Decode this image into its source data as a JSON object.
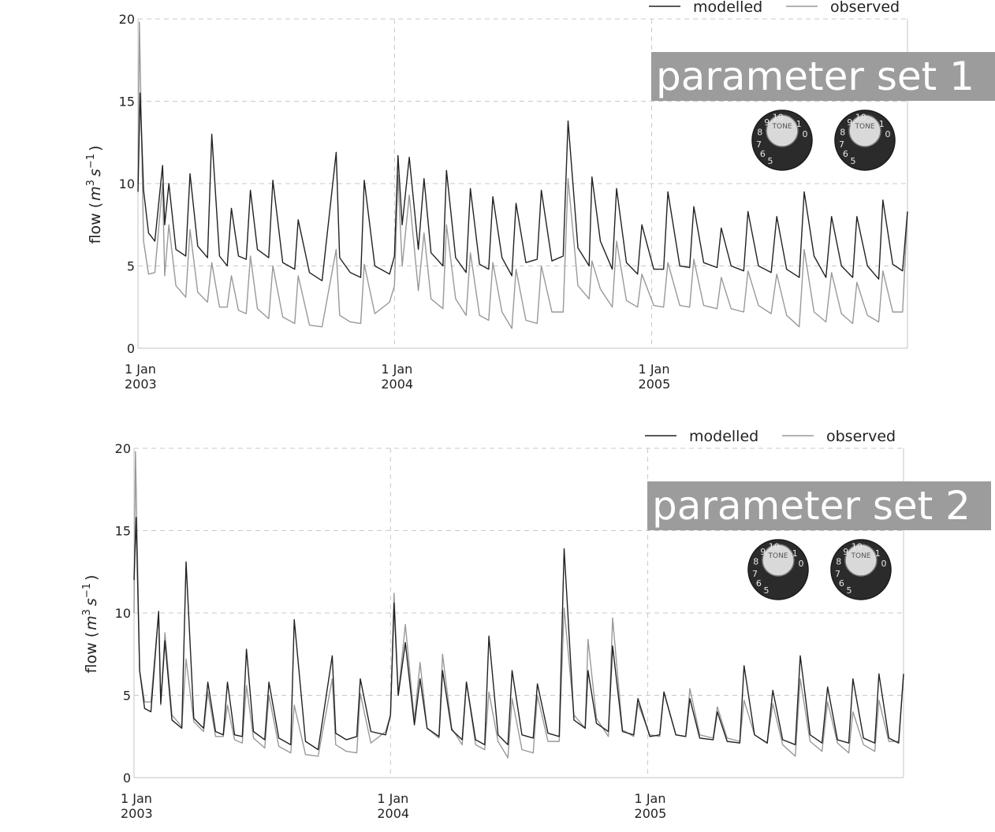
{
  "chart_data": [
    {
      "type": "line",
      "banner": "parameter set 1",
      "ylabel_main": "flow (",
      "ylabel_unit": "m",
      "ylabel_exp1": "3",
      "ylabel_unit2": "s",
      "ylabel_exp2": "−1",
      "ylabel_close": ")",
      "ylim": [
        0,
        20
      ],
      "yticks": [
        "0",
        "5",
        "10",
        "15",
        "20"
      ],
      "xlim": [
        "2003-01-01",
        "2005-12-31"
      ],
      "xticks": [
        {
          "date": "2003-01-01",
          "line1": "1 Jan",
          "line2": "2003"
        },
        {
          "date": "2004-01-01",
          "line1": "1 Jan",
          "line2": "2004"
        },
        {
          "date": "2005-01-01",
          "line1": "1 Jan",
          "line2": "2005"
        }
      ],
      "legend": {
        "position": "top-right",
        "entries": [
          "modelled",
          "observed"
        ]
      },
      "knob_label": "TONE",
      "knob_numbers": [
        "5",
        "6",
        "7",
        "8",
        "9",
        "10",
        "1",
        "0"
      ],
      "grid": true,
      "series": [
        {
          "name": "modelled",
          "color": "#222222",
          "x": [
            "2003-01-01",
            "2003-01-04",
            "2003-01-09",
            "2003-01-16",
            "2003-01-25",
            "2003-02-05",
            "2003-02-08",
            "2003-02-14",
            "2003-02-24",
            "2003-03-10",
            "2003-03-16",
            "2003-03-27",
            "2003-04-10",
            "2003-04-16",
            "2003-04-27",
            "2003-05-08",
            "2003-05-14",
            "2003-05-24",
            "2003-06-04",
            "2003-06-10",
            "2003-06-20",
            "2003-07-06",
            "2003-07-12",
            "2003-07-26",
            "2003-08-12",
            "2003-08-17",
            "2003-09-02",
            "2003-09-20",
            "2003-10-10",
            "2003-10-15",
            "2003-10-30",
            "2003-11-14",
            "2003-11-19",
            "2003-12-04",
            "2003-12-25",
            "2004-01-01",
            "2004-01-06",
            "2004-01-12",
            "2004-01-22",
            "2004-02-04",
            "2004-02-12",
            "2004-02-22",
            "2004-03-10",
            "2004-03-15",
            "2004-03-28",
            "2004-04-12",
            "2004-04-18",
            "2004-05-01",
            "2004-05-14",
            "2004-05-20",
            "2004-06-02",
            "2004-06-16",
            "2004-06-22",
            "2004-07-06",
            "2004-07-22",
            "2004-07-28",
            "2004-08-12",
            "2004-08-28",
            "2004-09-04",
            "2004-09-18",
            "2004-10-04",
            "2004-10-08",
            "2004-10-20",
            "2004-11-06",
            "2004-11-12",
            "2004-11-26",
            "2004-12-12",
            "2004-12-18",
            "2005-01-04",
            "2005-01-18",
            "2005-01-24",
            "2005-02-10",
            "2005-02-24",
            "2005-03-02",
            "2005-03-16",
            "2005-04-04",
            "2005-04-10",
            "2005-04-24",
            "2005-05-12",
            "2005-05-18",
            "2005-06-02",
            "2005-06-20",
            "2005-06-28",
            "2005-07-12",
            "2005-07-30",
            "2005-08-06",
            "2005-08-20",
            "2005-09-06",
            "2005-09-14",
            "2005-09-28",
            "2005-10-14",
            "2005-10-20",
            "2005-11-04",
            "2005-11-20",
            "2005-11-26",
            "2005-12-10",
            "2005-12-24",
            "2005-12-31"
          ],
          "y": [
            9.5,
            15.5,
            9.6,
            7.0,
            6.5,
            11.1,
            7.5,
            10.0,
            6.0,
            5.6,
            10.6,
            6.2,
            5.5,
            13.0,
            5.6,
            5.0,
            8.5,
            5.6,
            5.4,
            9.6,
            6.0,
            5.5,
            10.2,
            5.2,
            4.8,
            7.8,
            4.6,
            4.1,
            11.9,
            5.5,
            4.6,
            4.3,
            10.2,
            5.0,
            4.5,
            5.6,
            11.7,
            7.5,
            11.6,
            6.0,
            10.3,
            5.8,
            5.0,
            10.8,
            5.5,
            4.6,
            9.7,
            5.1,
            4.8,
            9.2,
            5.5,
            4.4,
            8.8,
            5.2,
            5.4,
            9.6,
            5.3,
            5.6,
            13.8,
            6.1,
            5.0,
            10.4,
            6.5,
            4.8,
            9.7,
            5.2,
            4.5,
            7.5,
            4.8,
            4.8,
            9.5,
            5.0,
            4.9,
            8.6,
            5.2,
            4.9,
            7.3,
            5.0,
            4.7,
            8.3,
            5.0,
            4.6,
            8.0,
            4.8,
            4.3,
            9.5,
            5.6,
            4.3,
            8.0,
            5.0,
            4.3,
            8.0,
            5.0,
            4.2,
            9.0,
            5.1,
            4.7,
            8.3
          ]
        },
        {
          "name": "observed",
          "color": "#999999",
          "x": [
            "2003-01-01",
            "2003-01-03",
            "2003-01-09",
            "2003-01-16",
            "2003-01-25",
            "2003-02-05",
            "2003-02-08",
            "2003-02-14",
            "2003-02-24",
            "2003-03-10",
            "2003-03-16",
            "2003-03-27",
            "2003-04-10",
            "2003-04-16",
            "2003-04-27",
            "2003-05-08",
            "2003-05-14",
            "2003-05-24",
            "2003-06-04",
            "2003-06-10",
            "2003-06-20",
            "2003-07-06",
            "2003-07-12",
            "2003-07-26",
            "2003-08-12",
            "2003-08-17",
            "2003-09-02",
            "2003-09-20",
            "2003-10-10",
            "2003-10-15",
            "2003-10-30",
            "2003-11-14",
            "2003-11-19",
            "2003-12-04",
            "2003-12-25",
            "2004-01-01",
            "2004-01-06",
            "2004-01-12",
            "2004-01-22",
            "2004-02-04",
            "2004-02-12",
            "2004-02-22",
            "2004-03-10",
            "2004-03-15",
            "2004-03-28",
            "2004-04-12",
            "2004-04-18",
            "2004-05-01",
            "2004-05-14",
            "2004-05-20",
            "2004-06-02",
            "2004-06-16",
            "2004-06-22",
            "2004-07-06",
            "2004-07-22",
            "2004-07-28",
            "2004-08-12",
            "2004-08-28",
            "2004-09-04",
            "2004-09-18",
            "2004-10-04",
            "2004-10-08",
            "2004-10-20",
            "2004-11-06",
            "2004-11-12",
            "2004-11-26",
            "2004-12-12",
            "2004-12-18",
            "2005-01-04",
            "2005-01-18",
            "2005-01-24",
            "2005-02-10",
            "2005-02-24",
            "2005-03-02",
            "2005-03-16",
            "2005-04-04",
            "2005-04-10",
            "2005-04-24",
            "2005-05-12",
            "2005-05-18",
            "2005-06-02",
            "2005-06-20",
            "2005-06-28",
            "2005-07-12",
            "2005-07-30",
            "2005-08-06",
            "2005-08-20",
            "2005-09-06",
            "2005-09-14",
            "2005-09-28",
            "2005-10-14",
            "2005-10-20",
            "2005-11-04",
            "2005-11-20",
            "2005-11-26",
            "2005-12-10",
            "2005-12-24",
            "2005-12-31"
          ],
          "y": [
            10.0,
            19.8,
            6.5,
            4.5,
            4.6,
            10.0,
            4.4,
            7.5,
            3.8,
            3.1,
            7.2,
            3.4,
            2.8,
            5.2,
            2.5,
            2.5,
            4.4,
            2.3,
            2.1,
            5.6,
            2.4,
            1.8,
            5.0,
            1.9,
            1.5,
            4.4,
            1.4,
            1.3,
            6.0,
            2.0,
            1.6,
            1.5,
            5.1,
            2.1,
            2.8,
            3.8,
            10.5,
            5.0,
            9.3,
            3.5,
            7.0,
            3.0,
            2.4,
            7.5,
            3.0,
            2.0,
            5.8,
            2.0,
            1.7,
            5.2,
            2.2,
            1.2,
            4.8,
            1.7,
            1.5,
            5.0,
            2.2,
            2.2,
            10.3,
            3.8,
            3.0,
            5.3,
            3.6,
            2.5,
            6.5,
            2.9,
            2.5,
            4.5,
            2.6,
            2.5,
            5.2,
            2.6,
            2.5,
            5.4,
            2.6,
            2.4,
            4.3,
            2.4,
            2.2,
            4.7,
            2.6,
            2.1,
            4.5,
            2.0,
            1.3,
            6.0,
            2.2,
            1.6,
            4.6,
            2.1,
            1.5,
            4.0,
            2.0,
            1.6,
            4.7,
            2.2,
            2.2,
            8.3
          ]
        }
      ]
    },
    {
      "type": "line",
      "banner": "parameter set 2",
      "ylabel_main": "flow (",
      "ylabel_unit": "m",
      "ylabel_exp1": "3",
      "ylabel_unit2": "s",
      "ylabel_exp2": "−1",
      "ylabel_close": ")",
      "ylim": [
        0,
        20
      ],
      "yticks": [
        "0",
        "5",
        "10",
        "15",
        "20"
      ],
      "xlim": [
        "2003-01-01",
        "2005-12-31"
      ],
      "xticks": [
        {
          "date": "2003-01-01",
          "line1": "1 Jan",
          "line2": "2003"
        },
        {
          "date": "2004-01-01",
          "line1": "1 Jan",
          "line2": "2004"
        },
        {
          "date": "2005-01-01",
          "line1": "1 Jan",
          "line2": "2005"
        }
      ],
      "legend": {
        "position": "top-right",
        "entries": [
          "modelled",
          "observed"
        ]
      },
      "knob_label": "TONE",
      "knob_numbers": [
        "5",
        "6",
        "7",
        "8",
        "9",
        "10",
        "1",
        "0"
      ],
      "grid": true,
      "series": [
        {
          "name": "modelled",
          "color": "#222222",
          "x": [
            "2003-01-01",
            "2003-01-04",
            "2003-01-09",
            "2003-01-16",
            "2003-01-25",
            "2003-02-05",
            "2003-02-08",
            "2003-02-14",
            "2003-02-24",
            "2003-03-10",
            "2003-03-16",
            "2003-03-27",
            "2003-04-10",
            "2003-04-16",
            "2003-04-27",
            "2003-05-08",
            "2003-05-14",
            "2003-05-24",
            "2003-06-04",
            "2003-06-10",
            "2003-06-20",
            "2003-07-06",
            "2003-07-12",
            "2003-07-26",
            "2003-08-12",
            "2003-08-17",
            "2003-09-02",
            "2003-09-20",
            "2003-10-10",
            "2003-10-15",
            "2003-10-30",
            "2003-11-14",
            "2003-11-19",
            "2003-12-04",
            "2003-12-25",
            "2004-01-01",
            "2004-01-06",
            "2004-01-12",
            "2004-01-22",
            "2004-02-04",
            "2004-02-12",
            "2004-02-22",
            "2004-03-10",
            "2004-03-15",
            "2004-03-28",
            "2004-04-12",
            "2004-04-18",
            "2004-05-01",
            "2004-05-14",
            "2004-05-20",
            "2004-06-02",
            "2004-06-16",
            "2004-06-22",
            "2004-07-06",
            "2004-07-22",
            "2004-07-28",
            "2004-08-12",
            "2004-08-28",
            "2004-09-04",
            "2004-09-18",
            "2004-10-04",
            "2004-10-08",
            "2004-10-20",
            "2004-11-06",
            "2004-11-12",
            "2004-11-26",
            "2004-12-12",
            "2004-12-18",
            "2005-01-04",
            "2005-01-18",
            "2005-01-24",
            "2005-02-10",
            "2005-02-24",
            "2005-03-02",
            "2005-03-16",
            "2005-04-04",
            "2005-04-10",
            "2005-04-24",
            "2005-05-12",
            "2005-05-18",
            "2005-06-02",
            "2005-06-20",
            "2005-06-28",
            "2005-07-12",
            "2005-07-30",
            "2005-08-06",
            "2005-08-20",
            "2005-09-06",
            "2005-09-14",
            "2005-09-28",
            "2005-10-14",
            "2005-10-20",
            "2005-11-04",
            "2005-11-20",
            "2005-11-26",
            "2005-12-10",
            "2005-12-24",
            "2005-12-31"
          ],
          "y": [
            12.0,
            15.8,
            6.5,
            4.2,
            4.0,
            10.1,
            4.5,
            8.3,
            3.5,
            3.0,
            13.1,
            3.6,
            3.0,
            5.8,
            2.8,
            2.6,
            5.8,
            2.6,
            2.5,
            7.8,
            2.8,
            2.3,
            5.8,
            2.4,
            2.0,
            9.6,
            2.2,
            1.7,
            7.4,
            2.7,
            2.3,
            2.5,
            6.0,
            2.8,
            2.6,
            3.8,
            10.6,
            5.0,
            8.2,
            3.2,
            6.0,
            3.0,
            2.5,
            6.5,
            2.9,
            2.3,
            5.8,
            2.3,
            2.0,
            8.6,
            2.6,
            2.0,
            6.5,
            2.6,
            2.4,
            5.7,
            2.7,
            2.5,
            13.9,
            3.5,
            3.0,
            6.5,
            3.3,
            2.8,
            8.0,
            2.8,
            2.6,
            4.8,
            2.5,
            2.6,
            5.2,
            2.6,
            2.5,
            4.8,
            2.4,
            2.3,
            4.0,
            2.2,
            2.1,
            6.8,
            2.6,
            2.1,
            5.3,
            2.3,
            2.0,
            7.4,
            2.6,
            2.1,
            5.5,
            2.3,
            2.1,
            6.0,
            2.4,
            2.1,
            6.3,
            2.4,
            2.1,
            6.3
          ]
        },
        {
          "name": "observed",
          "color": "#999999",
          "x": [
            "2003-01-01",
            "2003-01-03",
            "2003-01-09",
            "2003-01-16",
            "2003-01-25",
            "2003-02-05",
            "2003-02-08",
            "2003-02-14",
            "2003-02-24",
            "2003-03-10",
            "2003-03-16",
            "2003-03-27",
            "2003-04-10",
            "2003-04-16",
            "2003-04-27",
            "2003-05-08",
            "2003-05-14",
            "2003-05-24",
            "2003-06-04",
            "2003-06-10",
            "2003-06-20",
            "2003-07-06",
            "2003-07-12",
            "2003-07-26",
            "2003-08-12",
            "2003-08-17",
            "2003-09-02",
            "2003-09-20",
            "2003-10-10",
            "2003-10-15",
            "2003-10-30",
            "2003-11-14",
            "2003-11-19",
            "2003-12-04",
            "2003-12-25",
            "2004-01-01",
            "2004-01-06",
            "2004-01-12",
            "2004-01-22",
            "2004-02-04",
            "2004-02-12",
            "2004-02-22",
            "2004-03-10",
            "2004-03-15",
            "2004-03-28",
            "2004-04-12",
            "2004-04-18",
            "2004-05-01",
            "2004-05-14",
            "2004-05-20",
            "2004-06-02",
            "2004-06-16",
            "2004-06-22",
            "2004-07-06",
            "2004-07-22",
            "2004-07-28",
            "2004-08-12",
            "2004-08-28",
            "2004-09-04",
            "2004-09-18",
            "2004-10-04",
            "2004-10-08",
            "2004-10-20",
            "2004-11-06",
            "2004-11-12",
            "2004-11-26",
            "2004-12-12",
            "2004-12-18",
            "2005-01-04",
            "2005-01-18",
            "2005-01-24",
            "2005-02-10",
            "2005-02-24",
            "2005-03-02",
            "2005-03-16",
            "2005-04-04",
            "2005-04-10",
            "2005-04-24",
            "2005-05-12",
            "2005-05-18",
            "2005-06-02",
            "2005-06-20",
            "2005-06-28",
            "2005-07-12",
            "2005-07-30",
            "2005-08-06",
            "2005-08-20",
            "2005-09-06",
            "2005-09-14",
            "2005-09-28",
            "2005-10-14",
            "2005-10-20",
            "2005-11-04",
            "2005-11-20",
            "2005-11-26",
            "2005-12-10",
            "2005-12-24",
            "2005-12-31"
          ],
          "y": [
            10.0,
            19.8,
            6.5,
            4.6,
            4.6,
            10.0,
            4.4,
            8.8,
            3.8,
            3.1,
            7.2,
            3.4,
            2.8,
            5.2,
            2.5,
            2.5,
            4.4,
            2.3,
            2.1,
            5.6,
            2.4,
            1.8,
            5.0,
            1.9,
            1.5,
            4.4,
            1.4,
            1.3,
            6.0,
            2.0,
            1.6,
            1.5,
            5.1,
            2.1,
            2.8,
            3.8,
            11.2,
            5.0,
            9.3,
            3.5,
            7.0,
            3.0,
            2.4,
            7.5,
            3.0,
            2.0,
            5.8,
            2.0,
            1.7,
            5.2,
            2.2,
            1.2,
            4.8,
            1.7,
            1.5,
            5.0,
            2.2,
            2.2,
            10.3,
            3.8,
            3.0,
            8.4,
            3.6,
            2.5,
            9.7,
            2.9,
            2.5,
            4.5,
            2.6,
            2.5,
            5.2,
            2.6,
            2.5,
            5.4,
            2.6,
            2.4,
            4.3,
            2.4,
            2.2,
            4.7,
            2.6,
            2.1,
            4.5,
            2.0,
            1.3,
            6.0,
            2.2,
            1.6,
            4.6,
            2.1,
            1.5,
            4.0,
            2.0,
            1.6,
            4.7,
            2.2,
            2.2,
            6.3
          ]
        }
      ]
    }
  ]
}
